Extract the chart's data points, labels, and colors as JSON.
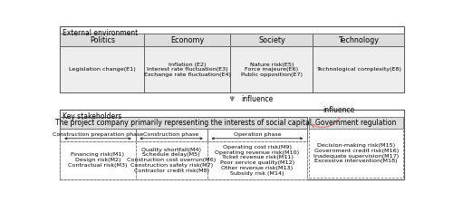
{
  "bg_color": "#ffffff",
  "external_env_label": "External environment",
  "key_stakeholders_label": "Key stakeholders",
  "politics_header": "Politics",
  "economy_header": "Economy",
  "society_header": "Society",
  "technology_header": "Technology",
  "politics_content": "Legislation change(E1)",
  "economy_content": "Inflation (E2)\nInterest rate fluctuation(E3)\nExchange rate fluctuation(E4)",
  "society_content": "Nature risk(E5)\nForce majeure(E6)\nPublic opposition(E7)",
  "technology_content": "Technological complexity(E8)",
  "influence_label1": "influence",
  "project_company_label": "The project company primarily representing the interests of social capital",
  "gov_reg_label": "Government regulation",
  "phase_label_prep": "Construction preparation phase",
  "phase_label_const": "Construction phase",
  "phase_label_oper": "Operation phase",
  "prep_risks": "Financing risk(M1)\nDesign risk(M2)\nContractual risk(M3)",
  "const_risks": "Quality shortfall(M4)\nSchedule delay(M5)\nConstruction cost overrun(M6)\nConstruction safety risk(M7)\nContractor credit risk(M8)",
  "oper_risks": "Operating cost risk(M9)\nOperating revenue risk(M10)\nTicket revenue risk(M11)\nPoor service quality(M12)\nOther revenue risk(M13)\nSubsidy risk (M14)",
  "gov_risks": "Decision-making risk(M15)\nGovernment credit risk(M16)\nInadequate supervision(M17)\nExcessive intervention(M18)",
  "influence_label2": "influence",
  "col_splits": [
    0.0,
    0.245,
    0.495,
    0.735,
    1.0
  ],
  "phase_splits": [
    0.0,
    0.305,
    0.595,
    1.0
  ],
  "font_size_section": 5.5,
  "font_size_header": 5.8,
  "font_size_label": 5.5,
  "font_size_content": 4.6,
  "font_size_phase": 4.5
}
